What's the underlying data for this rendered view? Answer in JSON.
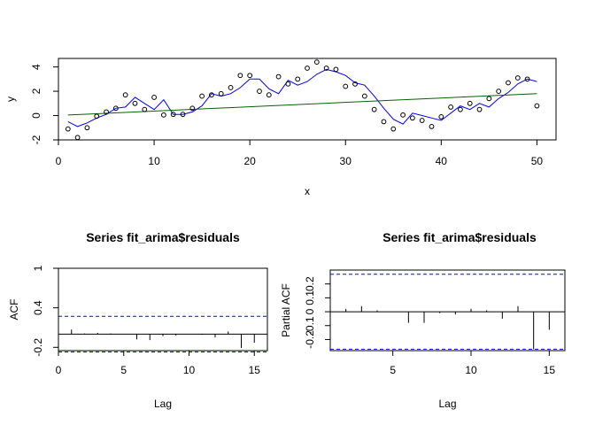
{
  "chart_data": [
    {
      "type": "scatter",
      "xlabel": "x",
      "ylabel": "y",
      "xlim": [
        0,
        52
      ],
      "ylim": [
        -2,
        4.7
      ],
      "xticks": [
        0,
        10,
        20,
        30,
        40,
        50
      ],
      "yticks": [
        -2,
        0,
        2,
        4
      ],
      "points": {
        "x": [
          1,
          2,
          3,
          4,
          5,
          6,
          7,
          8,
          9,
          10,
          11,
          12,
          13,
          14,
          15,
          16,
          17,
          18,
          19,
          20,
          21,
          22,
          23,
          24,
          25,
          26,
          27,
          28,
          29,
          30,
          31,
          32,
          33,
          34,
          35,
          36,
          37,
          38,
          39,
          40,
          41,
          42,
          43,
          44,
          45,
          46,
          47,
          48,
          49,
          50
        ],
        "y": [
          -1.1,
          -1.8,
          -1.0,
          -0.05,
          0.3,
          0.6,
          1.7,
          1.0,
          0.5,
          1.5,
          0.05,
          0.1,
          0.1,
          0.6,
          1.6,
          1.7,
          1.8,
          2.3,
          3.3,
          3.3,
          2.0,
          1.7,
          3.2,
          2.6,
          3.0,
          3.9,
          4.4,
          3.9,
          3.8,
          2.4,
          2.6,
          1.6,
          0.5,
          -0.5,
          -1.1,
          0.05,
          -0.2,
          -0.4,
          -0.9,
          -0.1,
          0.7,
          0.5,
          1.0,
          0.5,
          1.4,
          2.0,
          2.7,
          3.1,
          3.0,
          0.8
        ]
      },
      "series": [
        {
          "color": "#0000ff",
          "x": [
            1,
            2,
            3,
            4,
            5,
            6,
            7,
            8,
            9,
            10,
            11,
            12,
            13,
            14,
            15,
            16,
            17,
            18,
            19,
            20,
            21,
            22,
            23,
            24,
            25,
            26,
            27,
            28,
            29,
            30,
            31,
            32,
            33,
            34,
            35,
            36,
            37,
            38,
            39,
            40,
            41,
            42,
            43,
            44,
            45,
            46,
            47,
            48,
            49,
            50
          ],
          "y": [
            -0.5,
            -0.9,
            -0.6,
            -0.2,
            0.1,
            0.6,
            0.7,
            1.5,
            1.0,
            0.5,
            1.3,
            0.1,
            0.1,
            0.3,
            0.8,
            1.8,
            1.6,
            1.8,
            2.3,
            3.0,
            3.0,
            2.2,
            1.8,
            2.9,
            2.5,
            2.8,
            3.4,
            3.8,
            3.6,
            3.3,
            2.7,
            2.5,
            1.6,
            0.6,
            -0.3,
            -0.7,
            0.2,
            0.0,
            -0.2,
            -0.4,
            0.2,
            0.8,
            0.5,
            1.0,
            0.7,
            1.4,
            1.9,
            2.6,
            3.0,
            2.8
          ]
        },
        {
          "color": "#006400",
          "x": [
            1,
            50
          ],
          "y": [
            0.05,
            1.8
          ]
        }
      ]
    },
    {
      "type": "bar",
      "title": "Series  fit_arima$residuals",
      "xlabel": "Lag",
      "ylabel": "ACF",
      "xlim": [
        0,
        16
      ],
      "ylim": [
        -0.25,
        1.0
      ],
      "xticks": [
        0,
        5,
        10,
        15
      ],
      "yticks": [
        -0.2,
        0.4,
        1.0
      ],
      "conf_bound": 0.27,
      "lags": [
        0,
        1,
        2,
        3,
        4,
        5,
        6,
        7,
        8,
        9,
        10,
        11,
        12,
        13,
        14,
        15,
        16
      ],
      "values": [
        1.0,
        0.07,
        0.01,
        0.02,
        0.01,
        0.0,
        -0.08,
        -0.09,
        -0.03,
        -0.02,
        0.0,
        -0.01,
        -0.05,
        0.04,
        -0.21,
        -0.13,
        0.05
      ]
    },
    {
      "type": "bar",
      "title": "Series  fit_arima$residuals",
      "xlabel": "Lag",
      "ylabel": "Partial ACF",
      "xlim": [
        1,
        16
      ],
      "ylim": [
        -0.28,
        0.3
      ],
      "xticks": [
        5,
        10,
        15
      ],
      "yticks": [
        -0.2,
        -0.1,
        0.0,
        0.1,
        0.2
      ],
      "conf_bound": 0.27,
      "lags": [
        1,
        2,
        3,
        4,
        5,
        6,
        7,
        8,
        9,
        10,
        11,
        12,
        13,
        14,
        15,
        16
      ],
      "values": [
        0.07,
        0.02,
        0.04,
        0.01,
        0.0,
        -0.08,
        -0.08,
        -0.01,
        -0.02,
        0.02,
        0.01,
        -0.05,
        0.04,
        -0.27,
        -0.13,
        0.08
      ]
    }
  ]
}
